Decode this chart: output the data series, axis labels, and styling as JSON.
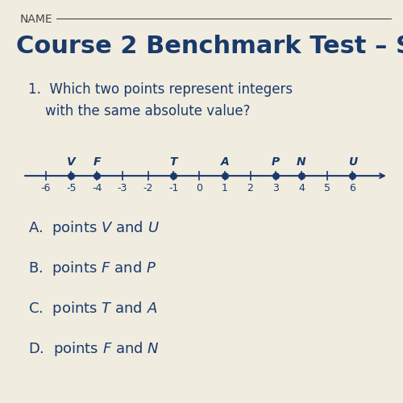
{
  "bg_color": "#f0ece0",
  "title_name": "NAME",
  "title_course": "Course 2 Benchmark Test – S",
  "question": "1.  Which two points represent integers\n    with the same absolute value?",
  "number_line": {
    "xmin": -7,
    "xmax": 7.5,
    "tick_min": -6,
    "tick_max": 6,
    "points": {
      "V": -5,
      "F": -4,
      "T": -1,
      "A": 1,
      "P": 3,
      "N": 4,
      "U": 6
    }
  },
  "choices": [
    "A.  points $V$ and $U$",
    "B.  points $F$ and $P$",
    "C.  points $T$ and $A$",
    "D.  points $F$ and $N$"
  ],
  "text_color": "#1a3a6b",
  "dot_color": "#1a3a6b",
  "line_color": "#1a3a6b",
  "name_color": "#444444",
  "course_title_color": "#1a3a6b",
  "font_size_title": 22,
  "font_size_question": 12,
  "font_size_choices": 13,
  "font_size_labels": 10,
  "font_size_ticks": 9
}
